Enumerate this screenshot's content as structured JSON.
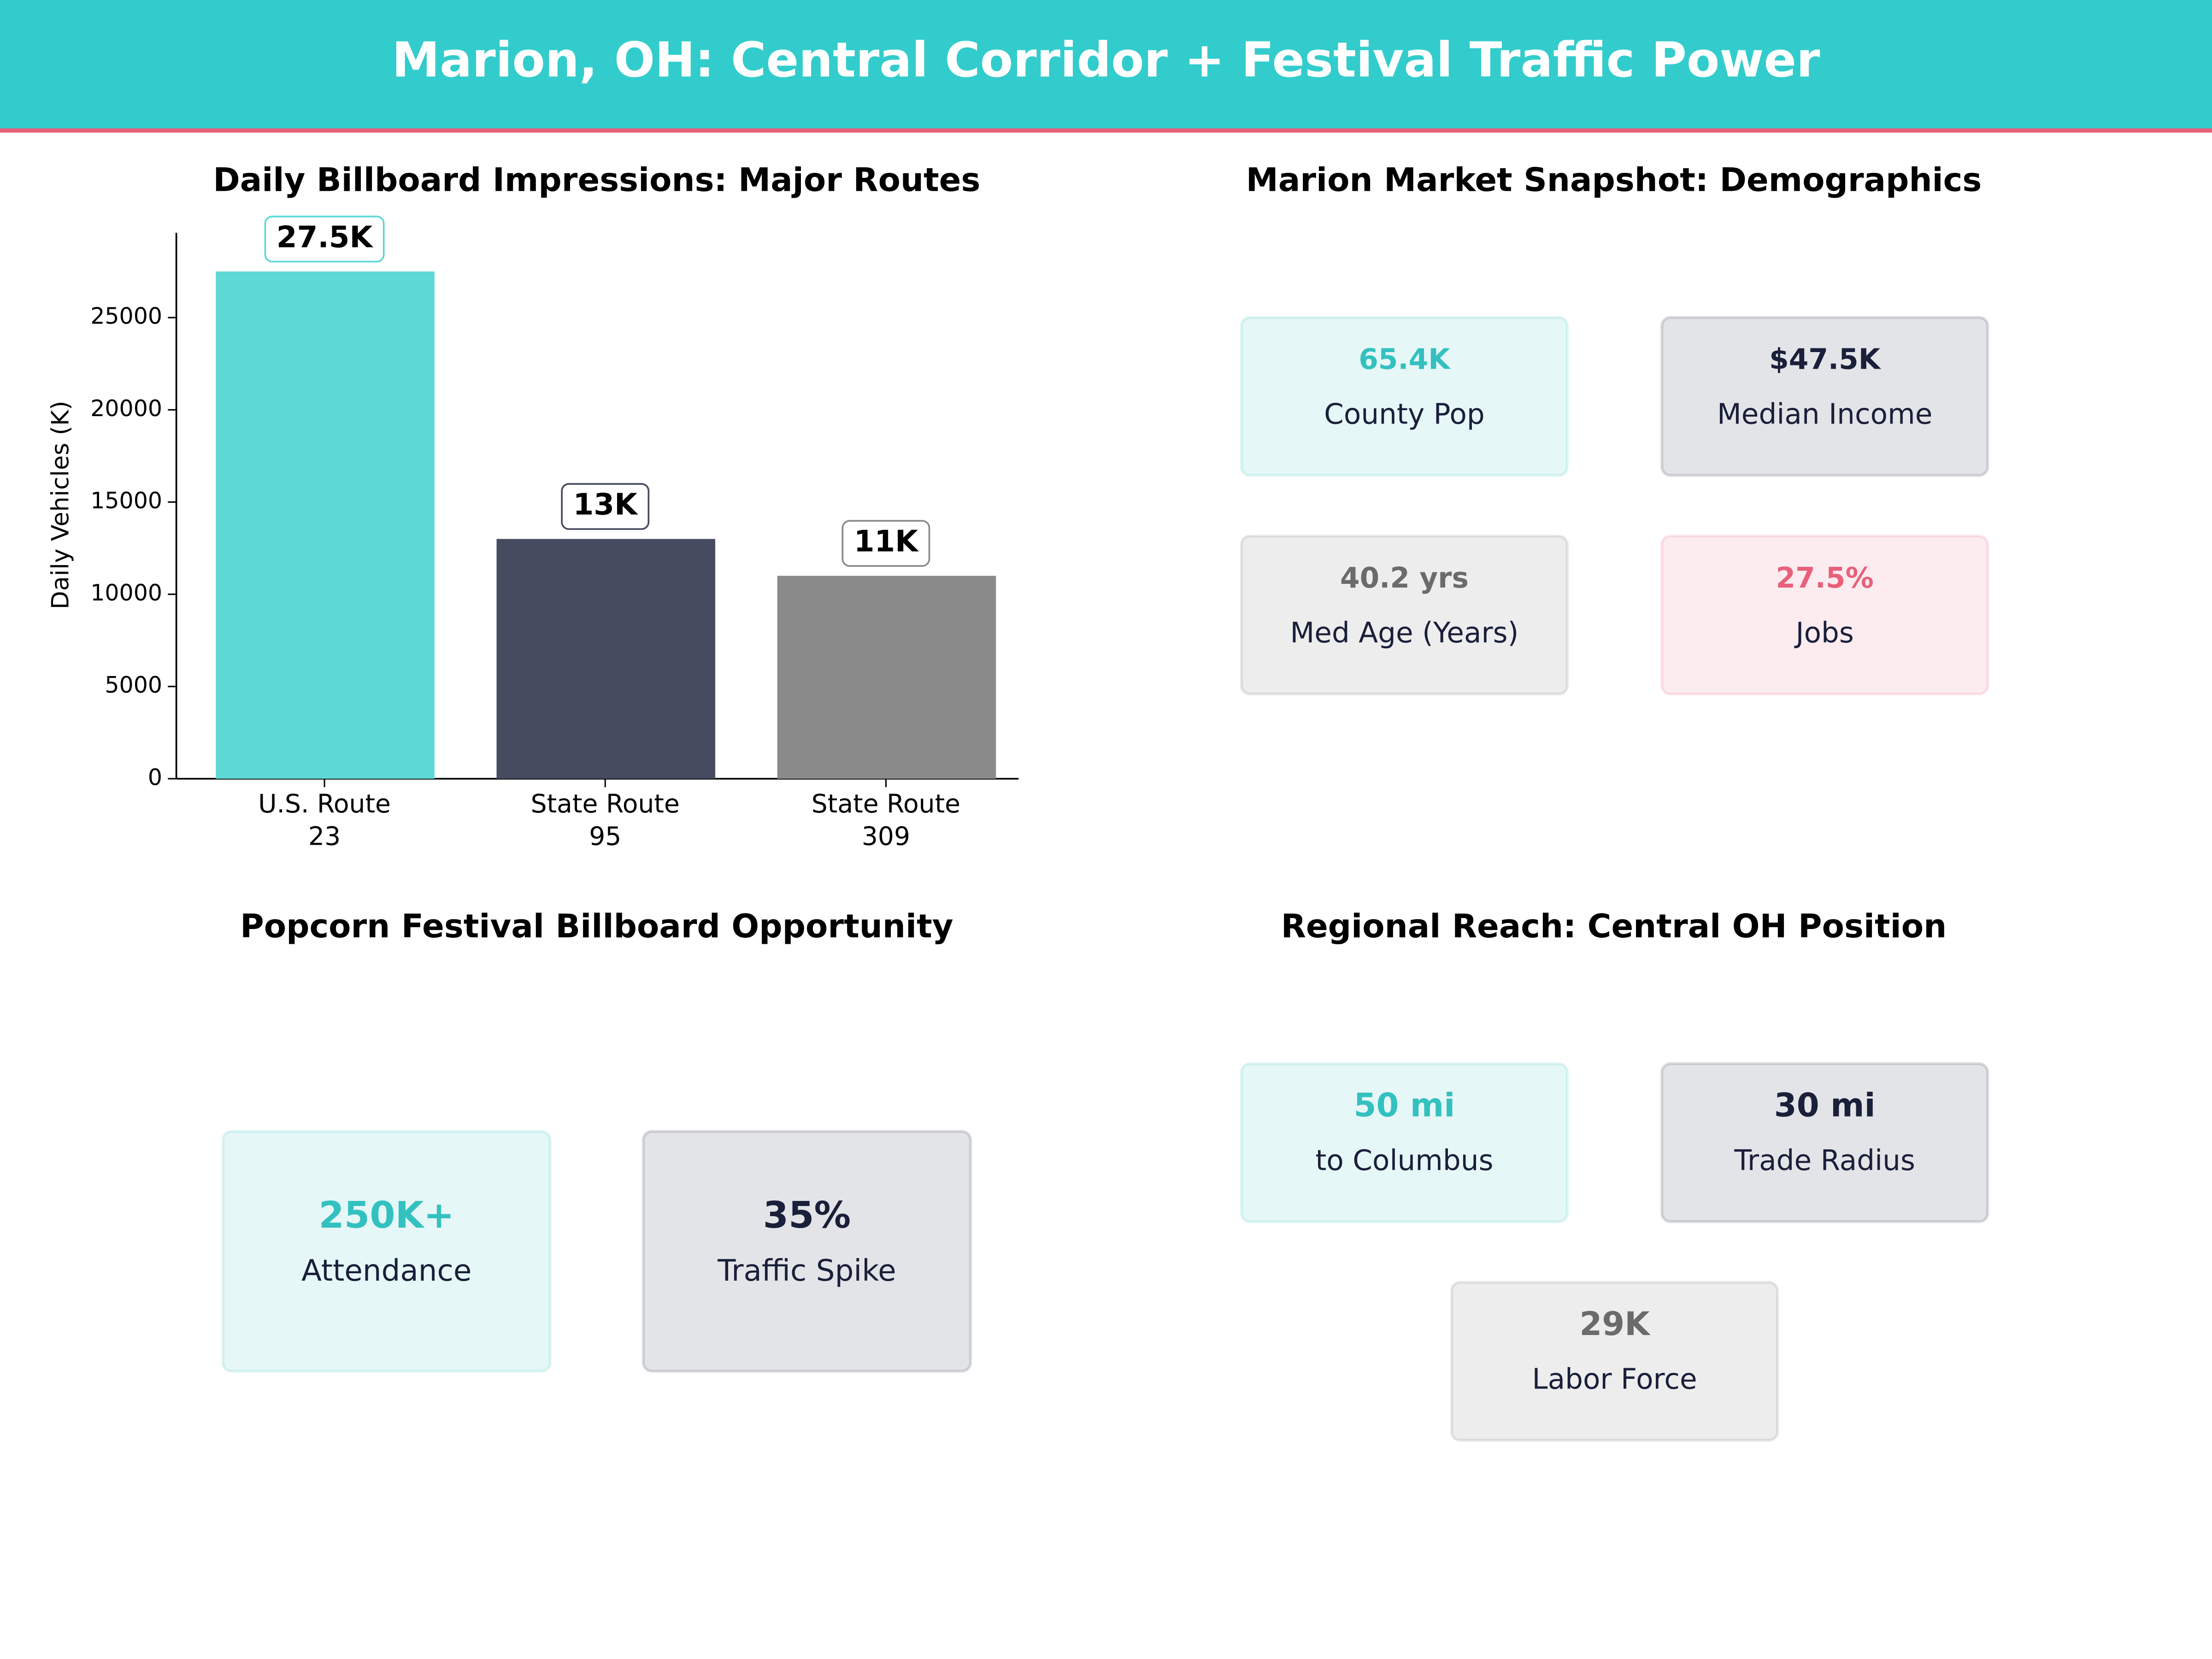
{
  "title": "Marion, OH: Central Corridor + Festival Traffic Power",
  "chart_data": {
    "type": "bar",
    "title": "Daily Billboard Impressions: Major Routes",
    "ylabel": "Daily Vehicles (K)",
    "categories": [
      "U.S. Route\n23",
      "State Route\n95",
      "State Route\n309"
    ],
    "values": [
      27500,
      13000,
      11000
    ],
    "value_labels": [
      "27.5K",
      "13K",
      "11K"
    ],
    "colors": [
      "#5dd8d4",
      "#474b60",
      "#8a8a8a"
    ],
    "ylim": [
      0,
      29600
    ],
    "yticks": [
      0,
      5000,
      10000,
      15000,
      20000,
      25000
    ],
    "grid": false
  },
  "demographics": {
    "title": "Marion Market Snapshot: Demographics",
    "cards": [
      {
        "value": "65.4K",
        "label": "County Pop",
        "color": "#33c1c0"
      },
      {
        "value": "$47.5K",
        "label": "Median Income",
        "color": "#1a1f3a"
      },
      {
        "value": "40.2 yrs",
        "label": "Med Age (Years)",
        "color": "#6b6b6b"
      },
      {
        "value": "27.5%",
        "label": "Jobs",
        "color": "#e8607a"
      }
    ]
  },
  "festival": {
    "title": "Popcorn Festival Billboard Opportunity",
    "cards": [
      {
        "value": "250K+",
        "label": "Attendance",
        "color": "#33c1c0"
      },
      {
        "value": "35%",
        "label": "Traffic Spike",
        "color": "#1a1f3a"
      }
    ]
  },
  "regional": {
    "title": "Regional Reach: Central OH Position",
    "cards": [
      {
        "value": "50 mi",
        "label": "to Columbus",
        "color": "#33c1c0"
      },
      {
        "value": "30 mi",
        "label": "Trade Radius",
        "color": "#1a1f3a"
      },
      {
        "value": "29K",
        "label": "Labor Force",
        "color": "#6b6b6b"
      }
    ]
  }
}
